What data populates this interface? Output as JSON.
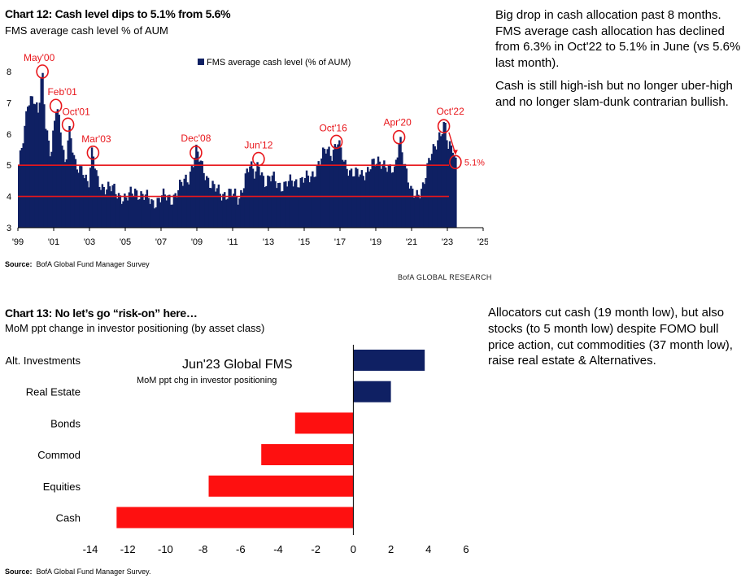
{
  "chart12": {
    "title": "Chart 12: Cash level dips to 5.1% from 5.6%",
    "subtitle": "FMS average cash level % of AUM",
    "source_label": "Source:",
    "source_text": "BofA Global Fund Manager Survey",
    "brand": "BofA GLOBAL RESEARCH",
    "note_p1": "Big drop in cash allocation past 8 months. FMS average cash allocation has declined from 6.3% in Oct'22 to 5.1% in June (vs 5.6% last month).",
    "note_p2": "Cash is still high-ish but no longer uber-high and no longer slam-dunk contrarian bullish.",
    "colors": {
      "bar": "#0f2063",
      "accent": "#e8161b"
    }
  },
  "chart13": {
    "title": "Chart 13: No let’s go “risk-on” here…",
    "subtitle": "MoM ppt change in investor positioning (by asset class)",
    "source_label": "Source:",
    "source_text": "BofA Global Fund Manager Survey.",
    "inner_title": "Jun'23 Global FMS",
    "inner_subtitle": "MoM ppt chg in investor positioning",
    "note": "Allocators cut cash (19 month low), but also stocks (to 5 month low) despite FOMO bull price action, cut commodities (37 month low), raise real estate & Alternatives.",
    "colors": {
      "positive": "#0f2063",
      "negative": "#fe1010"
    }
  },
  "chart_data": [
    {
      "type": "bar",
      "title": "Chart 12: Cash level dips to 5.1% from 5.6%",
      "subtitle": "FMS average cash level % of AUM",
      "legend": "FMS average cash level (% of AUM)",
      "legend_position": "top-center",
      "x_start_year": 1999,
      "x_end_year": 2025,
      "x_ticks": [
        "'99",
        "'01",
        "'03",
        "'05",
        "'07",
        "'09",
        "'11",
        "'13",
        "'15",
        "'17",
        "'19",
        "'21",
        "'23",
        "'25"
      ],
      "ylim": [
        3,
        8
      ],
      "y_ticks": [
        3,
        4,
        5,
        6,
        7,
        8
      ],
      "reference_lines": [
        5,
        4
      ],
      "anchors": [
        [
          1999.0,
          5.0
        ],
        [
          1999.3,
          5.9
        ],
        [
          1999.5,
          7.0
        ],
        [
          1999.8,
          7.3
        ],
        [
          2000.1,
          6.6
        ],
        [
          2000.3,
          8.0
        ],
        [
          2000.5,
          6.3
        ],
        [
          2000.8,
          5.4
        ],
        [
          2001.1,
          6.9
        ],
        [
          2001.4,
          5.8
        ],
        [
          2001.6,
          5.0
        ],
        [
          2001.8,
          6.3
        ],
        [
          2002.2,
          4.8
        ],
        [
          2002.6,
          4.9
        ],
        [
          2002.9,
          4.4
        ],
        [
          2003.1,
          5.4
        ],
        [
          2003.4,
          4.5
        ],
        [
          2003.8,
          4.3
        ],
        [
          2004.3,
          4.2
        ],
        [
          2005.0,
          3.9
        ],
        [
          2005.5,
          4.2
        ],
        [
          2006.0,
          4.0
        ],
        [
          2006.5,
          3.8
        ],
        [
          2007.0,
          4.0
        ],
        [
          2007.5,
          3.9
        ],
        [
          2008.0,
          4.3
        ],
        [
          2008.5,
          4.6
        ],
        [
          2008.9,
          5.5
        ],
        [
          2009.3,
          4.8
        ],
        [
          2009.8,
          4.4
        ],
        [
          2010.3,
          4.0
        ],
        [
          2010.8,
          4.2
        ],
        [
          2011.3,
          3.8
        ],
        [
          2011.7,
          4.8
        ],
        [
          2011.9,
          5.0
        ],
        [
          2012.2,
          4.6
        ],
        [
          2012.4,
          5.1
        ],
        [
          2012.8,
          4.4
        ],
        [
          2013.2,
          4.6
        ],
        [
          2013.8,
          4.3
        ],
        [
          2014.3,
          4.5
        ],
        [
          2014.8,
          4.5
        ],
        [
          2015.3,
          4.6
        ],
        [
          2015.8,
          5.1
        ],
        [
          2016.2,
          5.5
        ],
        [
          2016.5,
          5.4
        ],
        [
          2016.8,
          5.8
        ],
        [
          2017.2,
          5.0
        ],
        [
          2017.7,
          4.8
        ],
        [
          2018.2,
          4.6
        ],
        [
          2018.7,
          5.1
        ],
        [
          2019.0,
          5.0
        ],
        [
          2019.5,
          5.1
        ],
        [
          2020.0,
          4.7
        ],
        [
          2020.3,
          5.9
        ],
        [
          2020.6,
          5.0
        ],
        [
          2020.9,
          4.1
        ],
        [
          2021.2,
          4.0
        ],
        [
          2021.6,
          4.4
        ],
        [
          2022.0,
          5.2
        ],
        [
          2022.3,
          5.7
        ],
        [
          2022.5,
          6.0
        ],
        [
          2022.8,
          6.3
        ],
        [
          2023.0,
          5.5
        ],
        [
          2023.25,
          5.6
        ],
        [
          2023.45,
          5.1
        ]
      ],
      "annotations": [
        {
          "label": "May'00",
          "x": 2000.37,
          "y": 8.0
        },
        {
          "label": "Feb'01",
          "x": 2001.12,
          "y": 6.9
        },
        {
          "label": "Oct'01",
          "x": 2001.8,
          "y": 6.3
        },
        {
          "label": "Mar'03",
          "x": 2003.2,
          "y": 5.4
        },
        {
          "label": "Dec'08",
          "x": 2008.95,
          "y": 5.4
        },
        {
          "label": "Jun'12",
          "x": 2012.45,
          "y": 5.2
        },
        {
          "label": "Oct'16",
          "x": 2016.8,
          "y": 5.75
        },
        {
          "label": "Apr'20",
          "x": 2020.3,
          "y": 5.9
        },
        {
          "label": "Oct'22",
          "x": 2022.8,
          "y": 6.25
        },
        {
          "label": "5.1%",
          "x": 2023.45,
          "y": 5.1
        }
      ]
    },
    {
      "type": "bar",
      "orientation": "horizontal",
      "title": "Chart 13: No let’s go “risk-on” here…",
      "subtitle": "MoM ppt change in investor positioning (by asset class)",
      "categories": [
        "Alt. Investments",
        "Real Estate",
        "Bonds",
        "Commod",
        "Equities",
        "Cash"
      ],
      "values": [
        3.8,
        2.0,
        -3.1,
        -4.9,
        -7.7,
        -12.6
      ],
      "xlim": [
        -14,
        6
      ],
      "x_ticks": [
        -14,
        -12,
        -10,
        -8,
        -6,
        -4,
        -2,
        0,
        2,
        4,
        6
      ]
    }
  ]
}
